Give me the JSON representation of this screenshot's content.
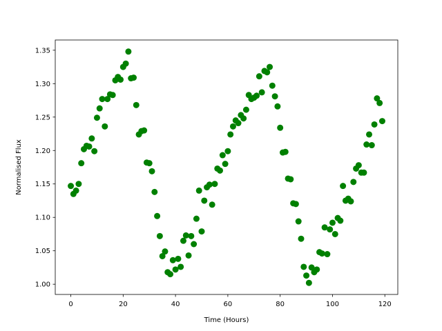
{
  "chart_data": {
    "type": "scatter",
    "xlabel": "Time (Hours)",
    "ylabel": "Normalised Flux",
    "x": [
      0,
      1,
      2,
      3,
      4,
      5,
      6,
      7,
      8,
      9,
      10,
      11,
      12,
      13,
      14,
      15,
      16,
      17,
      18,
      19,
      20,
      21,
      22,
      23,
      24,
      25,
      26,
      27,
      28,
      29,
      30,
      31,
      32,
      33,
      34,
      35,
      36,
      37,
      38,
      39,
      40,
      41,
      42,
      43,
      44,
      45,
      46,
      47,
      48,
      49,
      50,
      51,
      52,
      53,
      54,
      55,
      56,
      57,
      58,
      59,
      60,
      61,
      62,
      63,
      64,
      65,
      66,
      67,
      68,
      69,
      70,
      71,
      72,
      73,
      74,
      75,
      76,
      77,
      78,
      79,
      80,
      81,
      82,
      83,
      84,
      85,
      86,
      87,
      88,
      89,
      90,
      91,
      92,
      93,
      94,
      95,
      96,
      97,
      98,
      99,
      100,
      101,
      102,
      103,
      104,
      105,
      106,
      107,
      108,
      109,
      110,
      111,
      112,
      113,
      114,
      115,
      116,
      117,
      118,
      119
    ],
    "values": [
      1.147,
      1.135,
      1.14,
      1.15,
      1.181,
      1.202,
      1.207,
      1.206,
      1.218,
      1.199,
      1.249,
      1.263,
      1.277,
      1.236,
      1.277,
      1.284,
      1.283,
      1.305,
      1.31,
      1.306,
      1.325,
      1.33,
      1.348,
      1.308,
      1.309,
      1.268,
      1.224,
      1.229,
      1.23,
      1.182,
      1.181,
      1.169,
      1.138,
      1.102,
      1.072,
      1.042,
      1.049,
      1.018,
      1.015,
      1.036,
      1.022,
      1.038,
      1.026,
      1.065,
      1.073,
      1.043,
      1.072,
      1.06,
      1.098,
      1.14,
      1.079,
      1.125,
      1.145,
      1.149,
      1.119,
      1.15,
      1.173,
      1.17,
      1.193,
      1.18,
      1.199,
      1.224,
      1.236,
      1.245,
      1.241,
      1.253,
      1.248,
      1.261,
      1.283,
      1.277,
      1.279,
      1.282,
      1.311,
      1.287,
      1.319,
      1.317,
      1.325,
      1.297,
      1.281,
      1.266,
      1.234,
      1.197,
      1.198,
      1.158,
      1.157,
      1.121,
      1.12,
      1.094,
      1.068,
      1.026,
      1.013,
      1.002,
      1.025,
      1.018,
      1.022,
      1.048,
      1.046,
      1.085,
      1.045,
      1.082,
      1.092,
      1.075,
      1.099,
      1.095,
      1.147,
      1.125,
      1.128,
      1.124,
      1.153,
      1.173,
      1.178,
      1.167,
      1.167,
      1.209,
      1.224,
      1.208,
      1.239,
      1.278,
      1.271,
      1.244
    ],
    "color": "#008000",
    "xlim": [
      -5.95,
      124.95
    ],
    "xticks": [
      0,
      20,
      40,
      60,
      80,
      100,
      120
    ],
    "ylim": [
      0.9847,
      1.3653
    ],
    "yticks": [
      {
        "value": 1,
        "label": "1.00"
      },
      1.05,
      {
        "value": 1.1,
        "label": "1.10"
      },
      1.15,
      {
        "value": 1.2,
        "label": "1.20"
      },
      1.25,
      {
        "value": 1.3,
        "label": "1.30"
      },
      1.35
    ]
  }
}
